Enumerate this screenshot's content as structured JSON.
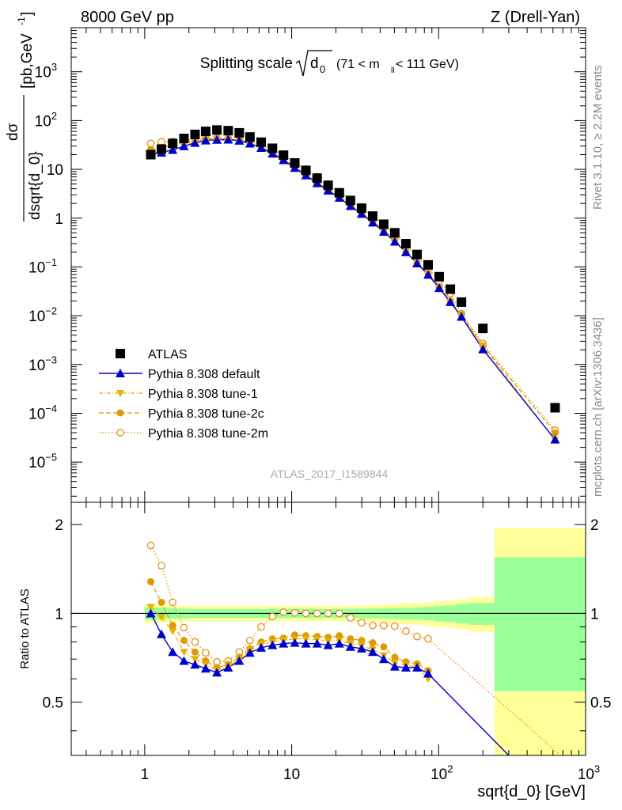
{
  "header": {
    "left": "8000 GeV pp",
    "right": "Z (Drell-Yan)"
  },
  "title_main": "Splitting scale",
  "title_sqrt_var": "d",
  "title_sqrt_sub": "0",
  "title_range_pre": "(71 < m",
  "title_range_sub": "ll",
  "title_range_post": " < 111 GeV)",
  "ylabel_top": {
    "num": "dσ",
    "den": "dsqrt{d_0}",
    "unit_pre": "[pb,GeV",
    "unit_sup": "-1",
    "unit_post": "]"
  },
  "ylabel_ratio": "Ratio to ATLAS",
  "xlabel": "sqrt{d_0} [GeV]",
  "watermark": "ATLAS_2017_I1589844",
  "side_text_top": "Rivet 3.1.10, ≥ 2.2M events",
  "side_text_bottom": "mcplots.cern.ch [arXiv:1306.3436]",
  "colors": {
    "atlas": "#000000",
    "default": "#0000cc",
    "tune1": "#e8b000",
    "tune2c": "#e09a00",
    "tune2m": "#e0901c",
    "band_inner": "#99ff99",
    "band_outer": "#ffff99"
  },
  "chart_data": {
    "type": "scatter",
    "xscale": "log",
    "yscale": "log",
    "xlim": [
      0.3162,
      1000
    ],
    "ylim_top": [
      1.5e-06,
      8000
    ],
    "ylim_ratio": [
      0.33,
      2.38
    ],
    "x_ticks": [
      {
        "v": 1,
        "label": "1"
      },
      {
        "v": 10,
        "label": "10"
      },
      {
        "v": 100,
        "label": "10",
        "sup": "2"
      },
      {
        "v": 1000,
        "label": "10",
        "sup": "3"
      }
    ],
    "y_ticks_top": [
      {
        "v": 1000,
        "label": "10",
        "sup": "3"
      },
      {
        "v": 100,
        "label": "10",
        "sup": "2"
      },
      {
        "v": 10,
        "label": "10"
      },
      {
        "v": 1,
        "label": "1"
      },
      {
        "v": 0.1,
        "label": "10",
        "sup": "−1"
      },
      {
        "v": 0.01,
        "label": "10",
        "sup": "−2"
      },
      {
        "v": 0.001,
        "label": "10",
        "sup": "−3"
      },
      {
        "v": 0.0001,
        "label": "10",
        "sup": "−4"
      },
      {
        "v": 1e-05,
        "label": "10",
        "sup": "−5"
      }
    ],
    "y_ticks_ratio": [
      {
        "v": 0.5,
        "label": "0.5"
      },
      {
        "v": 1,
        "label": "1"
      },
      {
        "v": 2,
        "label": "2"
      }
    ],
    "x": [
      1.1,
      1.3,
      1.55,
      1.85,
      2.2,
      2.6,
      3.1,
      3.7,
      4.4,
      5.2,
      6.2,
      7.4,
      8.8,
      10.5,
      12.5,
      14.9,
      17.7,
      21.1,
      25.1,
      29.9,
      35.6,
      42.3,
      50.3,
      59.9,
      71.3,
      84.8,
      100.9,
      120.1,
      143,
      200,
      620
    ],
    "legend": [
      "ATLAS",
      "Pythia 8.308 default",
      "Pythia 8.308 tune-1",
      "Pythia 8.308 tune-2c",
      "Pythia 8.308 tune-2m"
    ],
    "series": [
      {
        "name": "ATLAS",
        "values": [
          20,
          26,
          34,
          43,
          52,
          60,
          64,
          62,
          56,
          46,
          36,
          27,
          19.5,
          13.5,
          9.5,
          6.6,
          4.7,
          3.3,
          2.3,
          1.6,
          1.1,
          0.75,
          0.5,
          0.3,
          0.18,
          0.11,
          0.063,
          0.035,
          0.019,
          0.0055,
          0.00013
        ]
      },
      {
        "name": "Pythia 8.308 default",
        "values": [
          20,
          22,
          25,
          29.7,
          34.8,
          39,
          40.3,
          40.6,
          38.6,
          33.8,
          27.5,
          21,
          15.4,
          10.7,
          7.5,
          5.2,
          3.66,
          2.61,
          1.77,
          1.22,
          0.81,
          0.525,
          0.33,
          0.2,
          0.118,
          0.069,
          0.037,
          0.019,
          0.0095,
          0.00205,
          2.9e-05
        ]
      },
      {
        "name": "Pythia 8.308 tune-1",
        "values": [
          21,
          23.6,
          27,
          31.8,
          36.4,
          40.2,
          41,
          40.9,
          39.2,
          34.5,
          28.3,
          21.6,
          15.8,
          11.1,
          7.8,
          5.4,
          3.78,
          2.68,
          1.82,
          1.24,
          0.83,
          0.54,
          0.34,
          0.2,
          0.12,
          0.071,
          0.037,
          0.019,
          0.0095,
          0.0024,
          2.8e-05
        ]
      },
      {
        "name": "Pythia 8.308 tune-2c",
        "values": [
          25.6,
          28.4,
          31,
          34.8,
          38.5,
          41.4,
          41.9,
          41.4,
          39.8,
          35,
          29,
          22.2,
          16.1,
          11.4,
          8,
          5.55,
          3.9,
          2.78,
          1.9,
          1.3,
          0.88,
          0.575,
          0.355,
          0.205,
          0.122,
          0.072,
          0.039,
          0.02,
          0.0105,
          0.00245,
          4e-05
        ]
      },
      {
        "name": "Pythia 8.308 tune-2m",
        "values": [
          34,
          36.5,
          37,
          38.5,
          41.5,
          44.2,
          43.3,
          42.3,
          41.4,
          37.3,
          32.4,
          26.3,
          19.7,
          14.2,
          10.2,
          7.1,
          5,
          3.5,
          2.4,
          1.65,
          1.1,
          0.72,
          0.47,
          0.28,
          0.165,
          0.095,
          0.052,
          0.0285,
          0.011,
          0.0027,
          4.5e-05
        ]
      }
    ],
    "ratio_series": [
      {
        "name": "Pythia 8.308 default",
        "values": [
          1.0,
          0.85,
          0.74,
          0.69,
          0.67,
          0.65,
          0.63,
          0.655,
          0.69,
          0.735,
          0.765,
          0.78,
          0.79,
          0.795,
          0.79,
          0.79,
          0.78,
          0.79,
          0.77,
          0.76,
          0.74,
          0.7,
          0.66,
          0.655,
          0.655,
          0.625
        ]
      },
      {
        "name": "Pythia 8.308 tune-1",
        "values": [
          1.05,
          0.97,
          0.87,
          0.74,
          0.7,
          0.67,
          0.64,
          0.66,
          0.7,
          0.75,
          0.785,
          0.8,
          0.81,
          0.82,
          0.82,
          0.815,
          0.805,
          0.81,
          0.79,
          0.775,
          0.755,
          0.72,
          0.68,
          0.665,
          0.66,
          0.6
        ]
      },
      {
        "name": "Pythia 8.308 tune-2c",
        "values": [
          1.28,
          1.09,
          0.91,
          0.81,
          0.74,
          0.69,
          0.655,
          0.67,
          0.71,
          0.76,
          0.8,
          0.82,
          0.825,
          0.845,
          0.84,
          0.835,
          0.83,
          0.84,
          0.82,
          0.81,
          0.795,
          0.77,
          0.71,
          0.685,
          0.675,
          0.64
        ]
      },
      {
        "name": "Pythia 8.308 tune-2m",
        "values": [
          1.7,
          1.45,
          1.09,
          0.895,
          0.8,
          0.735,
          0.685,
          0.69,
          0.74,
          0.81,
          0.9,
          0.975,
          1.01,
          1.005,
          1.0,
          1.0,
          1.0,
          1.0,
          0.965,
          0.93,
          0.91,
          0.91,
          0.905,
          0.87,
          0.835,
          0.82
        ]
      }
    ],
    "ratio_lines_tail": [
      {
        "name": "Pythia 8.308 default",
        "from": [
          71.3,
          0.655
        ],
        "to": [
          300,
          0.33
        ]
      },
      {
        "name": "Pythia 8.308 tune-2m",
        "from": [
          84.8,
          0.82
        ],
        "to": [
          680,
          0.33
        ]
      }
    ],
    "bands": {
      "edges": [
        1,
        1.2,
        1.42,
        1.69,
        2.0,
        2.4,
        2.85,
        3.4,
        4.05,
        4.8,
        5.7,
        6.8,
        8.1,
        9.6,
        11.4,
        13.6,
        16.2,
        19.3,
        23,
        27.4,
        32.6,
        38.8,
        46.2,
        55,
        65.5,
        78,
        92.8,
        110,
        131,
        160,
        240,
        1000
      ],
      "inner_lo": [
        0.95,
        0.955,
        0.96,
        0.962,
        0.965,
        0.965,
        0.965,
        0.965,
        0.965,
        0.965,
        0.965,
        0.965,
        0.965,
        0.965,
        0.965,
        0.965,
        0.965,
        0.965,
        0.965,
        0.963,
        0.962,
        0.96,
        0.958,
        0.955,
        0.952,
        0.948,
        0.94,
        0.935,
        0.925,
        0.915,
        0.545
      ],
      "inner_hi": [
        1.05,
        1.045,
        1.04,
        1.038,
        1.035,
        1.035,
        1.035,
        1.035,
        1.035,
        1.035,
        1.035,
        1.035,
        1.035,
        1.035,
        1.035,
        1.035,
        1.035,
        1.035,
        1.035,
        1.037,
        1.038,
        1.04,
        1.042,
        1.045,
        1.048,
        1.052,
        1.06,
        1.065,
        1.075,
        1.085,
        1.55
      ],
      "outer_lo": [
        0.925,
        0.93,
        0.935,
        0.94,
        0.94,
        0.94,
        0.94,
        0.94,
        0.94,
        0.94,
        0.94,
        0.94,
        0.94,
        0.94,
        0.94,
        0.94,
        0.94,
        0.94,
        0.94,
        0.935,
        0.935,
        0.93,
        0.925,
        0.92,
        0.915,
        0.91,
        0.9,
        0.895,
        0.885,
        0.865,
        0.33
      ],
      "outer_hi": [
        1.075,
        1.07,
        1.065,
        1.06,
        1.06,
        1.06,
        1.06,
        1.06,
        1.06,
        1.06,
        1.06,
        1.06,
        1.06,
        1.06,
        1.06,
        1.06,
        1.06,
        1.06,
        1.06,
        1.065,
        1.065,
        1.07,
        1.075,
        1.08,
        1.085,
        1.09,
        1.1,
        1.105,
        1.115,
        1.135,
        1.95
      ]
    }
  }
}
